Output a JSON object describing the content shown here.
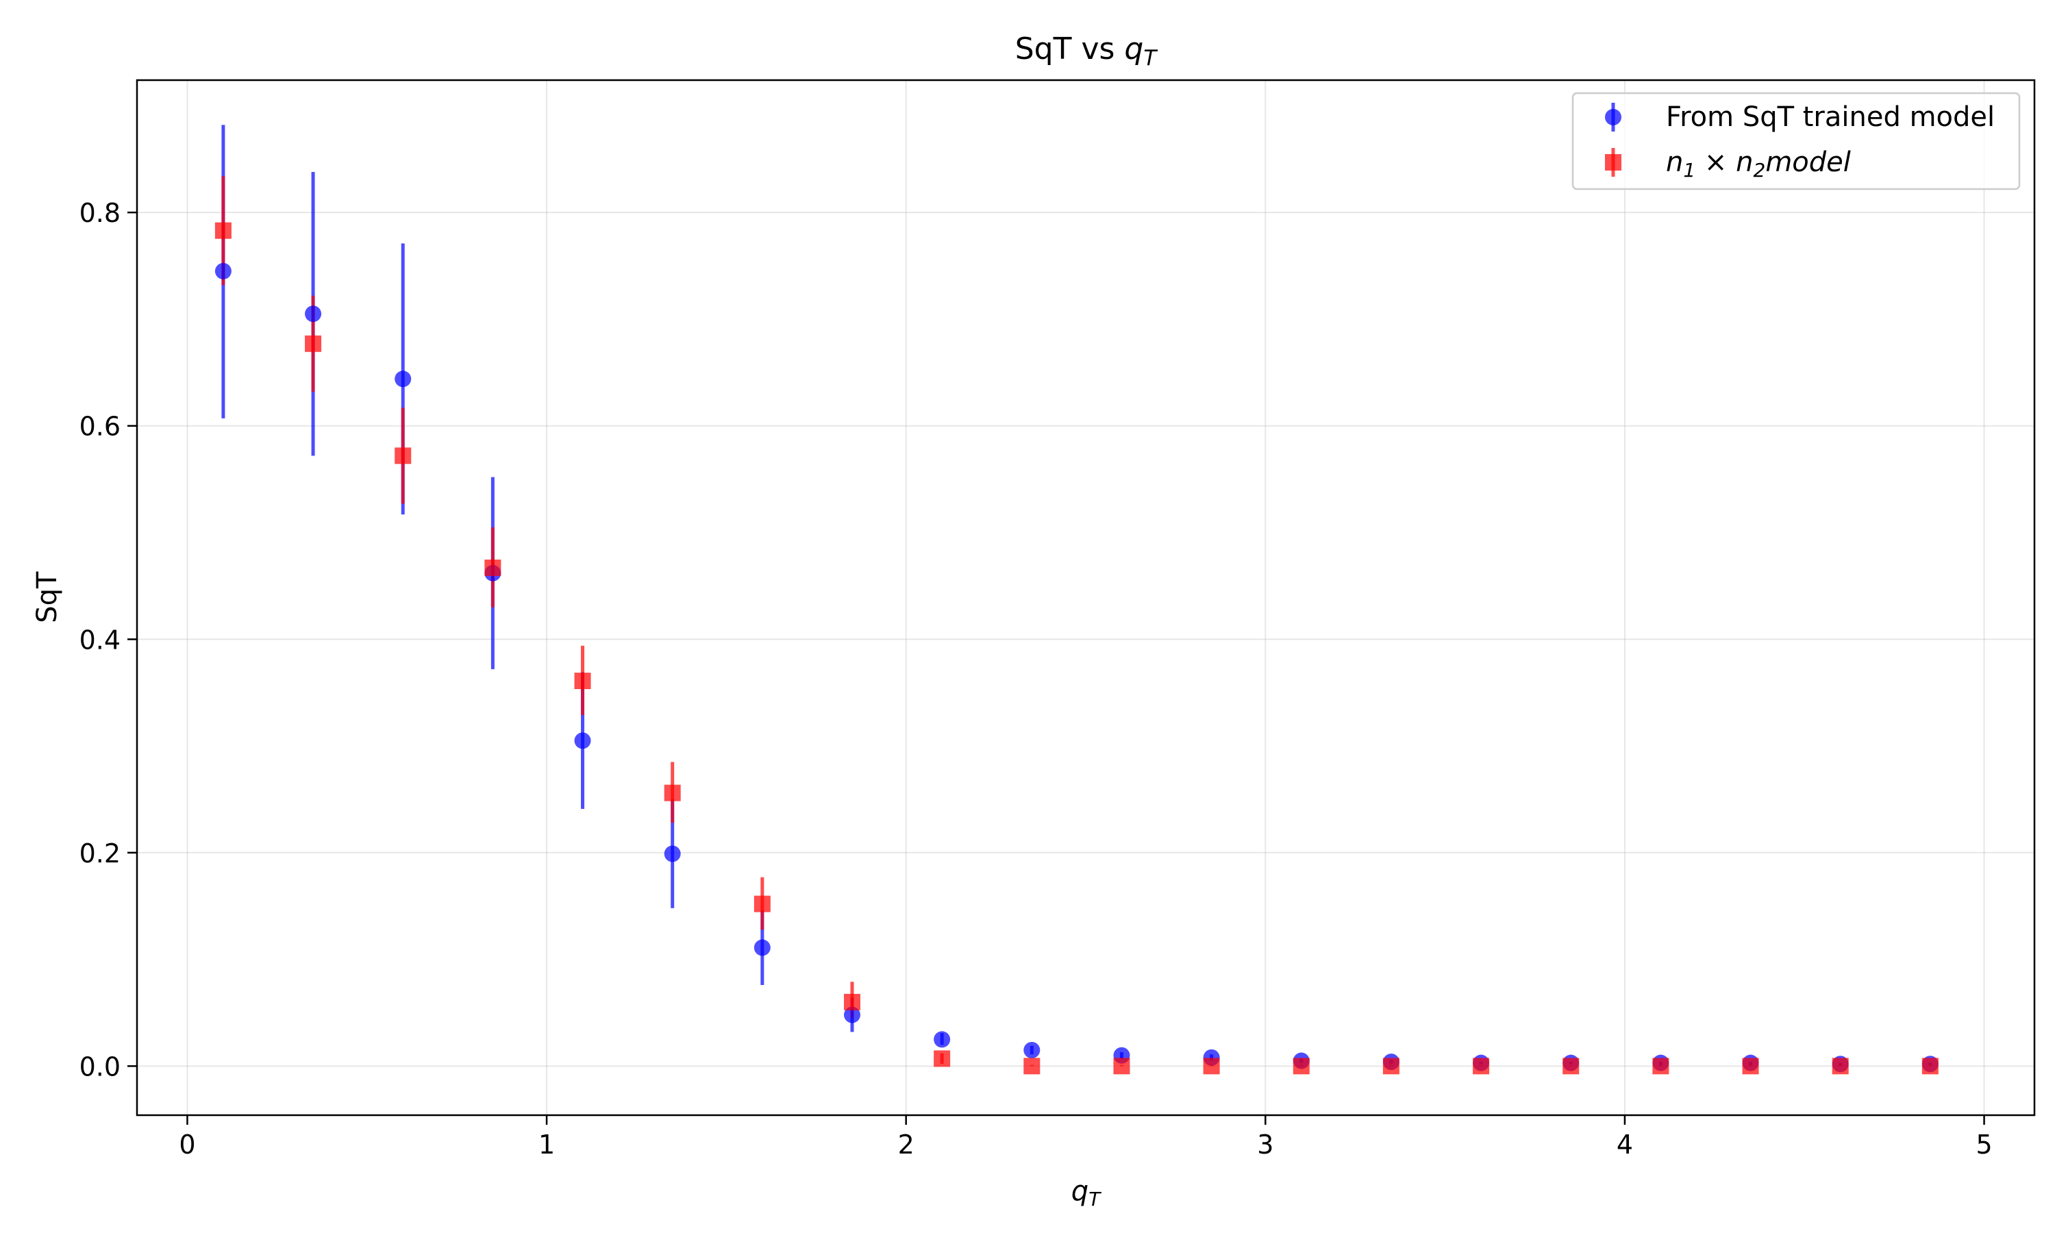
{
  "chart_data": {
    "type": "scatter",
    "title_prefix": "SqT vs ",
    "title_var": "q",
    "title_sub": "T",
    "xlabel_var": "q",
    "xlabel_sub": "T",
    "ylabel": "SqT",
    "xlim": [
      -0.14,
      5.14
    ],
    "ylim": [
      -0.046,
      0.924
    ],
    "xticks": [
      0,
      1,
      2,
      3,
      4,
      5
    ],
    "yticks": [
      0.0,
      0.2,
      0.4,
      0.6,
      0.8
    ],
    "xtick_labels": [
      "0",
      "1",
      "2",
      "3",
      "4",
      "5"
    ],
    "ytick_labels": [
      "0.0",
      "0.2",
      "0.4",
      "0.6",
      "0.8"
    ],
    "grid": true,
    "legend_position": "top-right",
    "series": [
      {
        "name": "From SqT trained model",
        "marker": "circle",
        "color": "#0000ff",
        "x": [
          0.1,
          0.35,
          0.6,
          0.85,
          1.1,
          1.35,
          1.6,
          1.85,
          2.1,
          2.35,
          2.6,
          2.85,
          3.1,
          3.35,
          3.6,
          3.85,
          4.1,
          4.35,
          4.6,
          4.85
        ],
        "y": [
          0.745,
          0.705,
          0.644,
          0.462,
          0.305,
          0.199,
          0.111,
          0.048,
          0.025,
          0.015,
          0.01,
          0.008,
          0.005,
          0.004,
          0.003,
          0.003,
          0.003,
          0.003,
          0.002,
          0.002
        ],
        "yerr_low": [
          0.607,
          0.572,
          0.517,
          0.372,
          0.241,
          0.148,
          0.076,
          0.032,
          0.02,
          0.011,
          0.007,
          0.005,
          0.003,
          0.002,
          0.002,
          0.002,
          0.001,
          0.001,
          0.001,
          0.001
        ],
        "yerr_high": [
          0.882,
          0.838,
          0.771,
          0.552,
          0.369,
          0.25,
          0.146,
          0.064,
          0.031,
          0.019,
          0.013,
          0.011,
          0.007,
          0.006,
          0.004,
          0.004,
          0.004,
          0.004,
          0.003,
          0.003
        ]
      },
      {
        "name_var1": "n",
        "name_sub1": "1",
        "name_times": " × ",
        "name_var2": "n",
        "name_sub2": "2",
        "name_suffix": "model",
        "marker": "square",
        "color": "#ff0000",
        "x": [
          0.1,
          0.35,
          0.6,
          0.85,
          1.1,
          1.35,
          1.6,
          1.85,
          2.1,
          2.35,
          2.6,
          2.85,
          3.1,
          3.35,
          3.6,
          3.85,
          4.1,
          4.35,
          4.6,
          4.85
        ],
        "y": [
          0.783,
          0.677,
          0.572,
          0.467,
          0.361,
          0.256,
          0.152,
          0.06,
          0.007,
          0.0,
          0.0,
          0.0,
          0.0,
          0.0,
          0.0,
          0.0,
          0.0,
          0.0,
          0.0,
          0.0
        ],
        "yerr_low": [
          0.732,
          0.632,
          0.527,
          0.43,
          0.329,
          0.228,
          0.128,
          0.045,
          0.002,
          0.0,
          0.0,
          0.0,
          0.0,
          0.0,
          0.0,
          0.0,
          0.0,
          0.0,
          0.0,
          0.0
        ],
        "yerr_high": [
          0.834,
          0.722,
          0.617,
          0.505,
          0.394,
          0.285,
          0.177,
          0.079,
          0.012,
          0.001,
          0.001,
          0.001,
          0.001,
          0.001,
          0.001,
          0.001,
          0.001,
          0.001,
          0.001,
          0.001
        ]
      }
    ]
  }
}
